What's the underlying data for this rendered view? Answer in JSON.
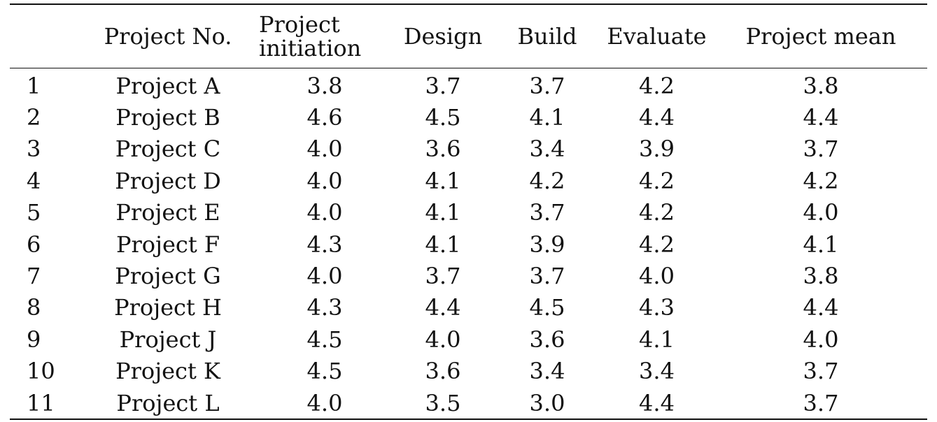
{
  "table": {
    "headers": {
      "index": "",
      "project_no": "Project No.",
      "initiation_line1": "Project",
      "initiation_line2": "initiation",
      "design": "Design",
      "build": "Build",
      "evaluate": "Evaluate",
      "mean": "Project mean"
    },
    "rows": [
      {
        "index": "1",
        "project": "Project A",
        "initiation": "3.8",
        "design": "3.7",
        "build": "3.7",
        "evaluate": "4.2",
        "mean": "3.8"
      },
      {
        "index": "2",
        "project": "Project B",
        "initiation": "4.6",
        "design": "4.5",
        "build": "4.1",
        "evaluate": "4.4",
        "mean": "4.4"
      },
      {
        "index": "3",
        "project": "Project C",
        "initiation": "4.0",
        "design": "3.6",
        "build": "3.4",
        "evaluate": "3.9",
        "mean": "3.7"
      },
      {
        "index": "4",
        "project": "Project D",
        "initiation": "4.0",
        "design": "4.1",
        "build": "4.2",
        "evaluate": "4.2",
        "mean": "4.2"
      },
      {
        "index": "5",
        "project": "Project E",
        "initiation": "4.0",
        "design": "4.1",
        "build": "3.7",
        "evaluate": "4.2",
        "mean": "4.0"
      },
      {
        "index": "6",
        "project": "Project F",
        "initiation": "4.3",
        "design": "4.1",
        "build": "3.9",
        "evaluate": "4.2",
        "mean": "4.1"
      },
      {
        "index": "7",
        "project": "Project G",
        "initiation": "4.0",
        "design": "3.7",
        "build": "3.7",
        "evaluate": "4.0",
        "mean": "3.8"
      },
      {
        "index": "8",
        "project": "Project H",
        "initiation": "4.3",
        "design": "4.4",
        "build": "4.5",
        "evaluate": "4.3",
        "mean": "4.4"
      },
      {
        "index": "9",
        "project": "Project J",
        "initiation": "4.5",
        "design": "4.0",
        "build": "3.6",
        "evaluate": "4.1",
        "mean": "4.0"
      },
      {
        "index": "10",
        "project": "Project K",
        "initiation": "4.5",
        "design": "3.6",
        "build": "3.4",
        "evaluate": "3.4",
        "mean": "3.7"
      },
      {
        "index": "11",
        "project": "Project L",
        "initiation": "4.0",
        "design": "3.5",
        "build": "3.0",
        "evaluate": "4.4",
        "mean": "3.7"
      }
    ]
  }
}
